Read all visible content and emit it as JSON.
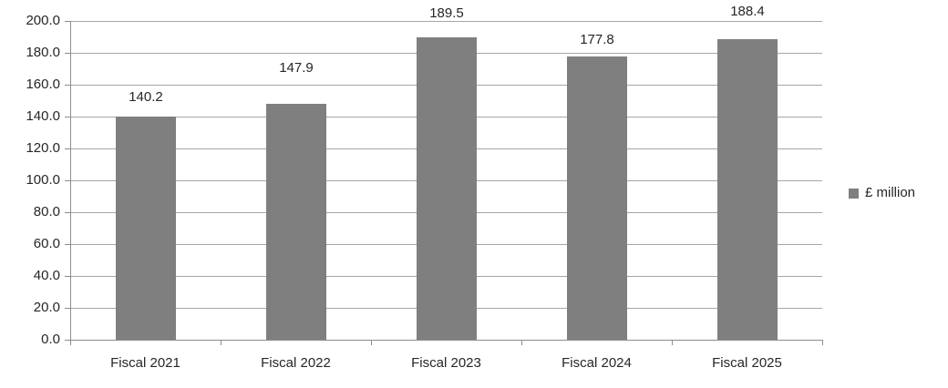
{
  "chart_data": {
    "type": "bar",
    "title": "",
    "xlabel": "",
    "ylabel": "",
    "categories": [
      "Fiscal 2021",
      "Fiscal 2022",
      "Fiscal 2023",
      "Fiscal 2024",
      "Fiscal 2025"
    ],
    "series": [
      {
        "name": "£ million",
        "values": [
          140.2,
          147.9,
          189.5,
          177.8,
          188.4
        ]
      }
    ],
    "value_labels": [
      "140.2",
      "147.9",
      "189.5",
      "177.8",
      "188.4"
    ],
    "ylim": [
      0,
      200
    ],
    "y_tick_step": 20,
    "y_tick_labels": [
      "0.0",
      "20.0",
      "40.0",
      "60.0",
      "80.0",
      "100.0",
      "120.0",
      "140.0",
      "160.0",
      "180.0",
      "200.0"
    ],
    "grid": "horizontal",
    "legend": {
      "position": "right",
      "label": "£ million"
    },
    "colors": {
      "bar": "#7F7F7F",
      "gridline": "#A6A6A6",
      "axis": "#8C8C8C",
      "text": "#262626",
      "background": "#FFFFFF"
    }
  }
}
